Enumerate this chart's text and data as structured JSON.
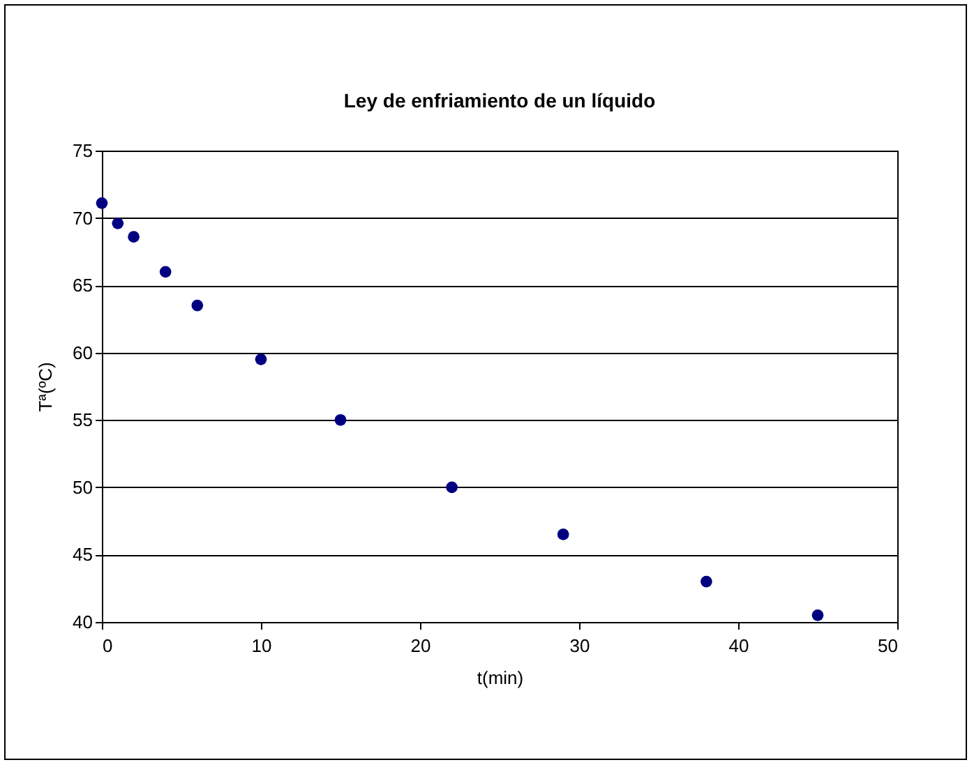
{
  "chart_data": {
    "type": "scatter",
    "title": "Ley de enfriamiento de un líquido",
    "xlabel": "t(min)",
    "ylabel": "Tª(ºC)",
    "x": [
      0,
      1,
      2,
      4,
      6,
      10,
      15,
      22,
      29,
      38,
      45
    ],
    "series": [
      {
        "color": "#000080",
        "values": [
          71.1,
          69.6,
          68.6,
          66.0,
          63.5,
          59.5,
          55.0,
          50.0,
          46.5,
          43.0,
          40.5
        ]
      }
    ],
    "xlim": [
      0,
      50
    ],
    "xticks": [
      0,
      10,
      20,
      30,
      40,
      50
    ],
    "ylim": [
      40,
      75
    ],
    "yticks": [
      40,
      45,
      50,
      55,
      60,
      65,
      70,
      75
    ],
    "grid": "y",
    "legend": false,
    "marker": "circle"
  }
}
